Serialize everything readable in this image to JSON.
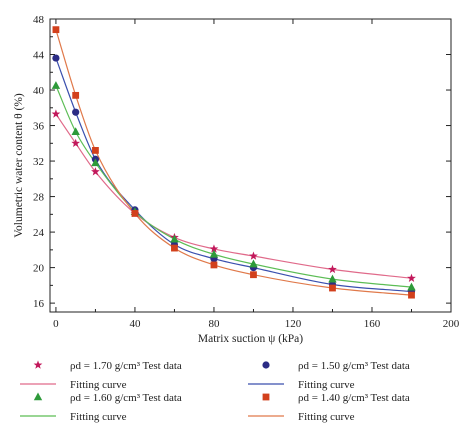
{
  "chart_data": {
    "type": "scatter",
    "title": "",
    "xlabel": "Matrix suction ψ (kPa)",
    "ylabel": "Volumetric water content θ (%)",
    "xlim": [
      -3,
      200
    ],
    "ylim": [
      15,
      48
    ],
    "xticks": [
      0,
      40,
      80,
      120,
      160,
      200
    ],
    "yticks": [
      16,
      20,
      24,
      28,
      32,
      36,
      40,
      44,
      48
    ],
    "grid": false,
    "legend_position": "bottom",
    "series": [
      {
        "name": "ρd = 1.70 g/cm³ Test data",
        "marker": "star",
        "color": "#c2185b",
        "x": [
          0,
          10,
          20,
          40,
          60,
          80,
          100,
          140,
          180
        ],
        "y": [
          37.3,
          34.0,
          30.8,
          26.1,
          23.4,
          22.1,
          21.3,
          19.8,
          18.8
        ],
        "fit_name": "Fitting curve",
        "fit_color": "#e06a8a"
      },
      {
        "name": "ρd = 1.50 g/cm³ Test data",
        "marker": "circle",
        "color": "#2b2c85",
        "x": [
          0,
          10,
          20,
          40,
          60,
          80,
          100,
          140,
          180
        ],
        "y": [
          43.6,
          37.5,
          32.2,
          26.5,
          22.6,
          21.0,
          20.0,
          18.1,
          17.3
        ],
        "fit_name": "Fitting curve",
        "fit_color": "#3a4fae"
      },
      {
        "name": "ρd = 1.60 g/cm³ Test data",
        "marker": "triangle",
        "color": "#2e9a3a",
        "x": [
          0,
          10,
          20,
          40,
          60,
          80,
          100,
          140,
          180
        ],
        "y": [
          40.5,
          35.3,
          31.8,
          26.3,
          23.2,
          21.5,
          20.4,
          18.7,
          17.8
        ],
        "fit_name": "Fitting curve",
        "fit_color": "#5cbd55"
      },
      {
        "name": "ρd = 1.40 g/cm³ Test data",
        "marker": "square",
        "color": "#d2401c",
        "x": [
          0,
          10,
          20,
          40,
          60,
          80,
          100,
          140,
          180
        ],
        "y": [
          46.8,
          39.4,
          33.2,
          26.1,
          22.2,
          20.3,
          19.2,
          17.7,
          16.9
        ],
        "fit_name": "Fitting curve",
        "fit_color": "#e0794a"
      }
    ]
  }
}
